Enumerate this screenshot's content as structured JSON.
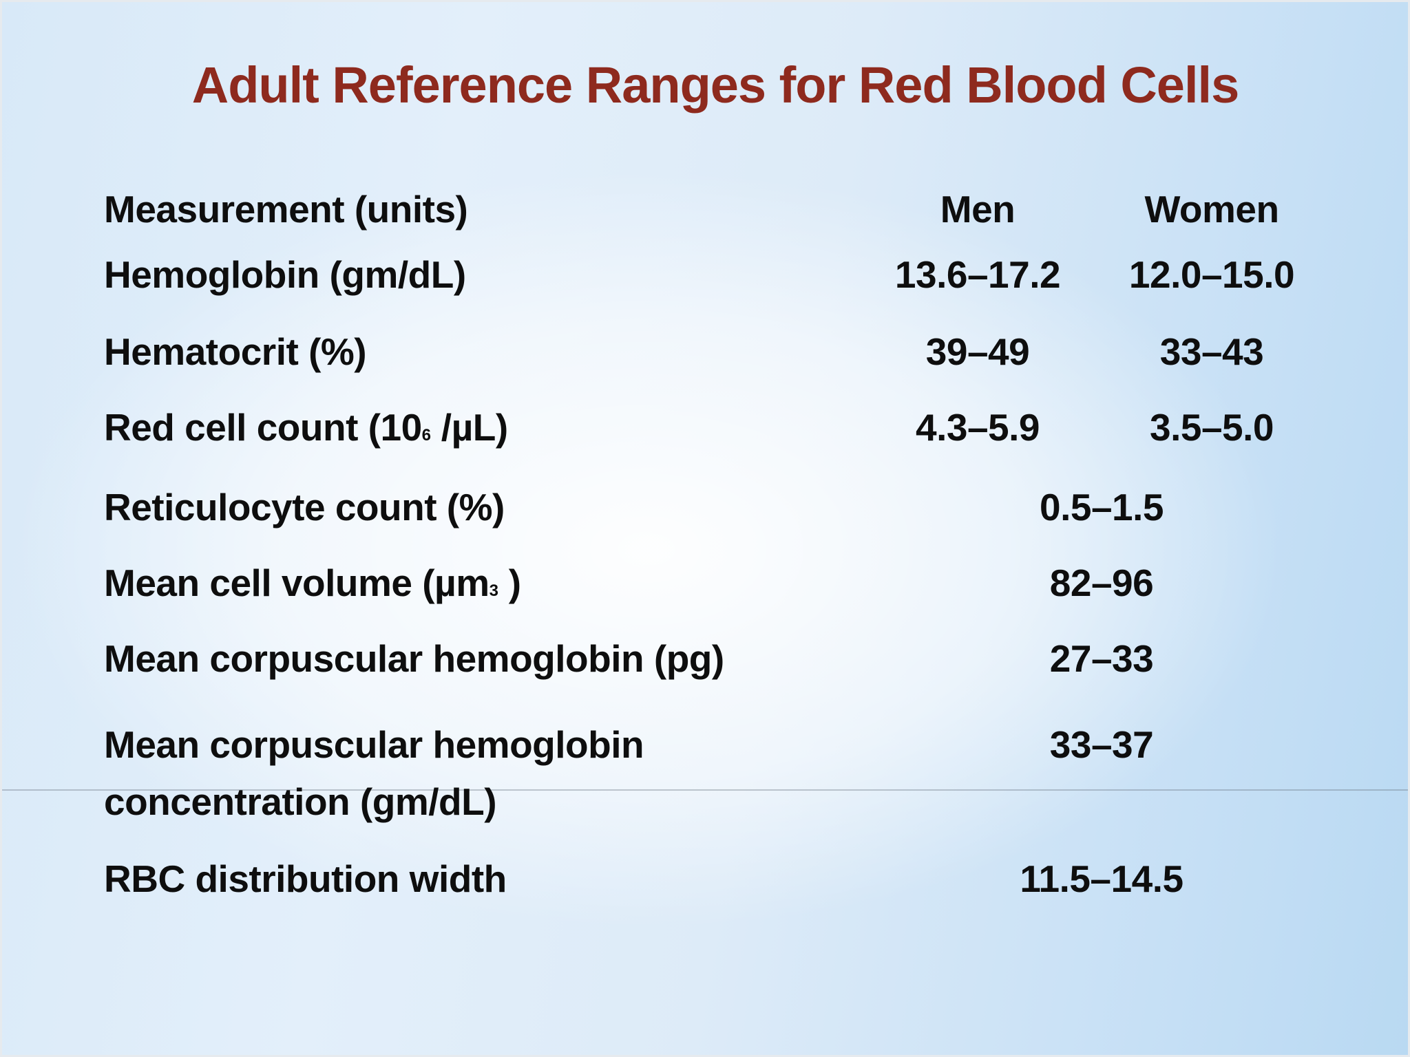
{
  "slide": {
    "title": "Adult Reference Ranges for Red Blood Cells",
    "title_color": "#8e2a1e",
    "background_tint": "#d5e7f7",
    "text_color": "#0e0e0e"
  },
  "table": {
    "header": {
      "measurement": "Measurement (units)",
      "men": "Men",
      "women": "Women"
    },
    "rows": [
      {
        "label": "Hemoglobin (gm/dL)",
        "men": "13.6–17.2",
        "women": "12.0–15.0"
      },
      {
        "label": "Hematocrit (%)",
        "men": "39–49",
        "women": "33–43"
      },
      {
        "label_pre": "Red cell count (10",
        "label_sup": "6",
        "label_post": " /µL)",
        "men": "4.3–5.9",
        "women": "3.5–5.0"
      },
      {
        "label": "Reticulocyte count (%)",
        "value": "0.5–1.5"
      },
      {
        "label_pre": "Mean cell volume (µm",
        "label_sup": "3",
        "label_post": " )",
        "value": "82–96"
      },
      {
        "label": "Mean corpuscular hemoglobin (pg)",
        "value": "27–33"
      },
      {
        "label_line1": "Mean corpuscular hemoglobin",
        "label_line2": "concentration (gm/dL)",
        "value": "33–37"
      },
      {
        "label": "RBC distribution width",
        "value": "11.5–14.5"
      }
    ]
  }
}
